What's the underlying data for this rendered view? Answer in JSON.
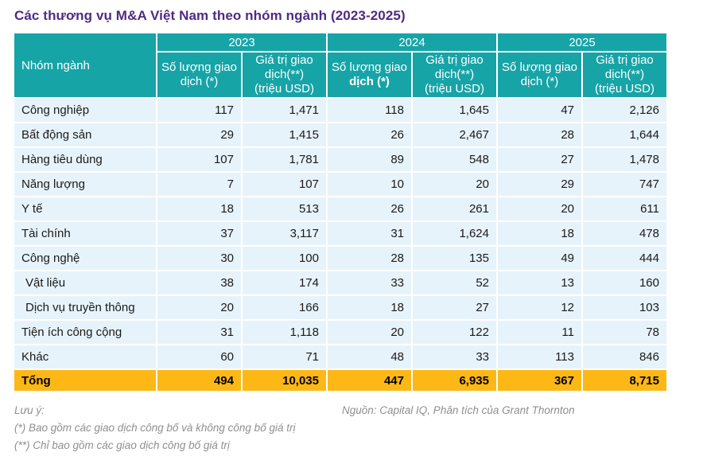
{
  "title": "Các thương vụ M&A Việt Nam theo nhóm ngành (2023-2025)",
  "colors": {
    "header_teal": "#16A4A7",
    "row_light_blue": "#E7F3FA",
    "total_gold": "#FDB816",
    "title_purple": "#4C2C82",
    "footnote_gray": "#8F8F8F"
  },
  "chart_data": {
    "type": "table",
    "title": "Các thương vụ M&A Việt Nam theo nhóm ngành (2023-2025)",
    "corner_header": "Nhóm ngành",
    "year_groups": [
      {
        "year": "2023",
        "count_header_lines": [
          "Số lượng giao",
          "dịch (*)"
        ],
        "value_header_lines": [
          "Giá trị giao",
          "dịch(**)",
          "(triệu USD)"
        ]
      },
      {
        "year": "2024",
        "count_header_lines": [
          "Số lượng giao",
          "dịch (*)"
        ],
        "value_header_lines": [
          "Giá trị giao",
          "dịch(**)",
          "(triệu USD)"
        ]
      },
      {
        "year": "2025",
        "count_header_lines": [
          "Số lượng giao",
          "dịch (*)"
        ],
        "value_header_lines": [
          "Giá trị giao",
          "dịch(**)",
          "(triệu USD)"
        ]
      }
    ],
    "rows": [
      {
        "label": "Công nghiệp",
        "indent": false,
        "values": [
          "117",
          "1,471",
          "118",
          "1,645",
          "47",
          "2,126"
        ]
      },
      {
        "label": "Bất động sản",
        "indent": false,
        "values": [
          "29",
          "1,415",
          "26",
          "2,467",
          "28",
          "1,644"
        ]
      },
      {
        "label": "Hàng tiêu dùng",
        "indent": false,
        "values": [
          "107",
          "1,781",
          "89",
          "548",
          "27",
          "1,478"
        ]
      },
      {
        "label": "Năng lượng",
        "indent": false,
        "values": [
          "7",
          "107",
          "10",
          "20",
          "29",
          "747"
        ]
      },
      {
        "label": "Y tế",
        "indent": false,
        "values": [
          "18",
          "513",
          "26",
          "261",
          "20",
          "611"
        ]
      },
      {
        "label": "Tài chính",
        "indent": false,
        "values": [
          "37",
          "3,117",
          "31",
          "1,624",
          "18",
          "478"
        ]
      },
      {
        "label": "Công nghệ",
        "indent": false,
        "values": [
          "30",
          "100",
          "28",
          "135",
          "49",
          "444"
        ]
      },
      {
        "label": "Vật liệu",
        "indent": true,
        "values": [
          "38",
          "174",
          "33",
          "52",
          "13",
          "160"
        ]
      },
      {
        "label": "Dịch vụ truyền thông",
        "indent": true,
        "values": [
          "20",
          "166",
          "18",
          "27",
          "12",
          "103"
        ]
      },
      {
        "label": "Tiện ích công cộng",
        "indent": false,
        "values": [
          "31",
          "1,118",
          "20",
          "122",
          "11",
          "78"
        ]
      },
      {
        "label": "Khác",
        "indent": false,
        "values": [
          "60",
          "71",
          "48",
          "33",
          "113",
          "846"
        ]
      }
    ],
    "total_row": {
      "label": "Tổng",
      "values": [
        "494",
        "10,035",
        "447",
        "6,935",
        "367",
        "8,715"
      ]
    }
  },
  "footnotes": {
    "label": "Lưu ý:",
    "notes": [
      "(*) Bao gồm các giao dịch công bố và không công bố giá trị",
      "(**) Chỉ bao gồm các giao dịch công bố giá trị"
    ],
    "source": "Nguồn: Capital IQ, Phân tích của Grant Thornton"
  }
}
